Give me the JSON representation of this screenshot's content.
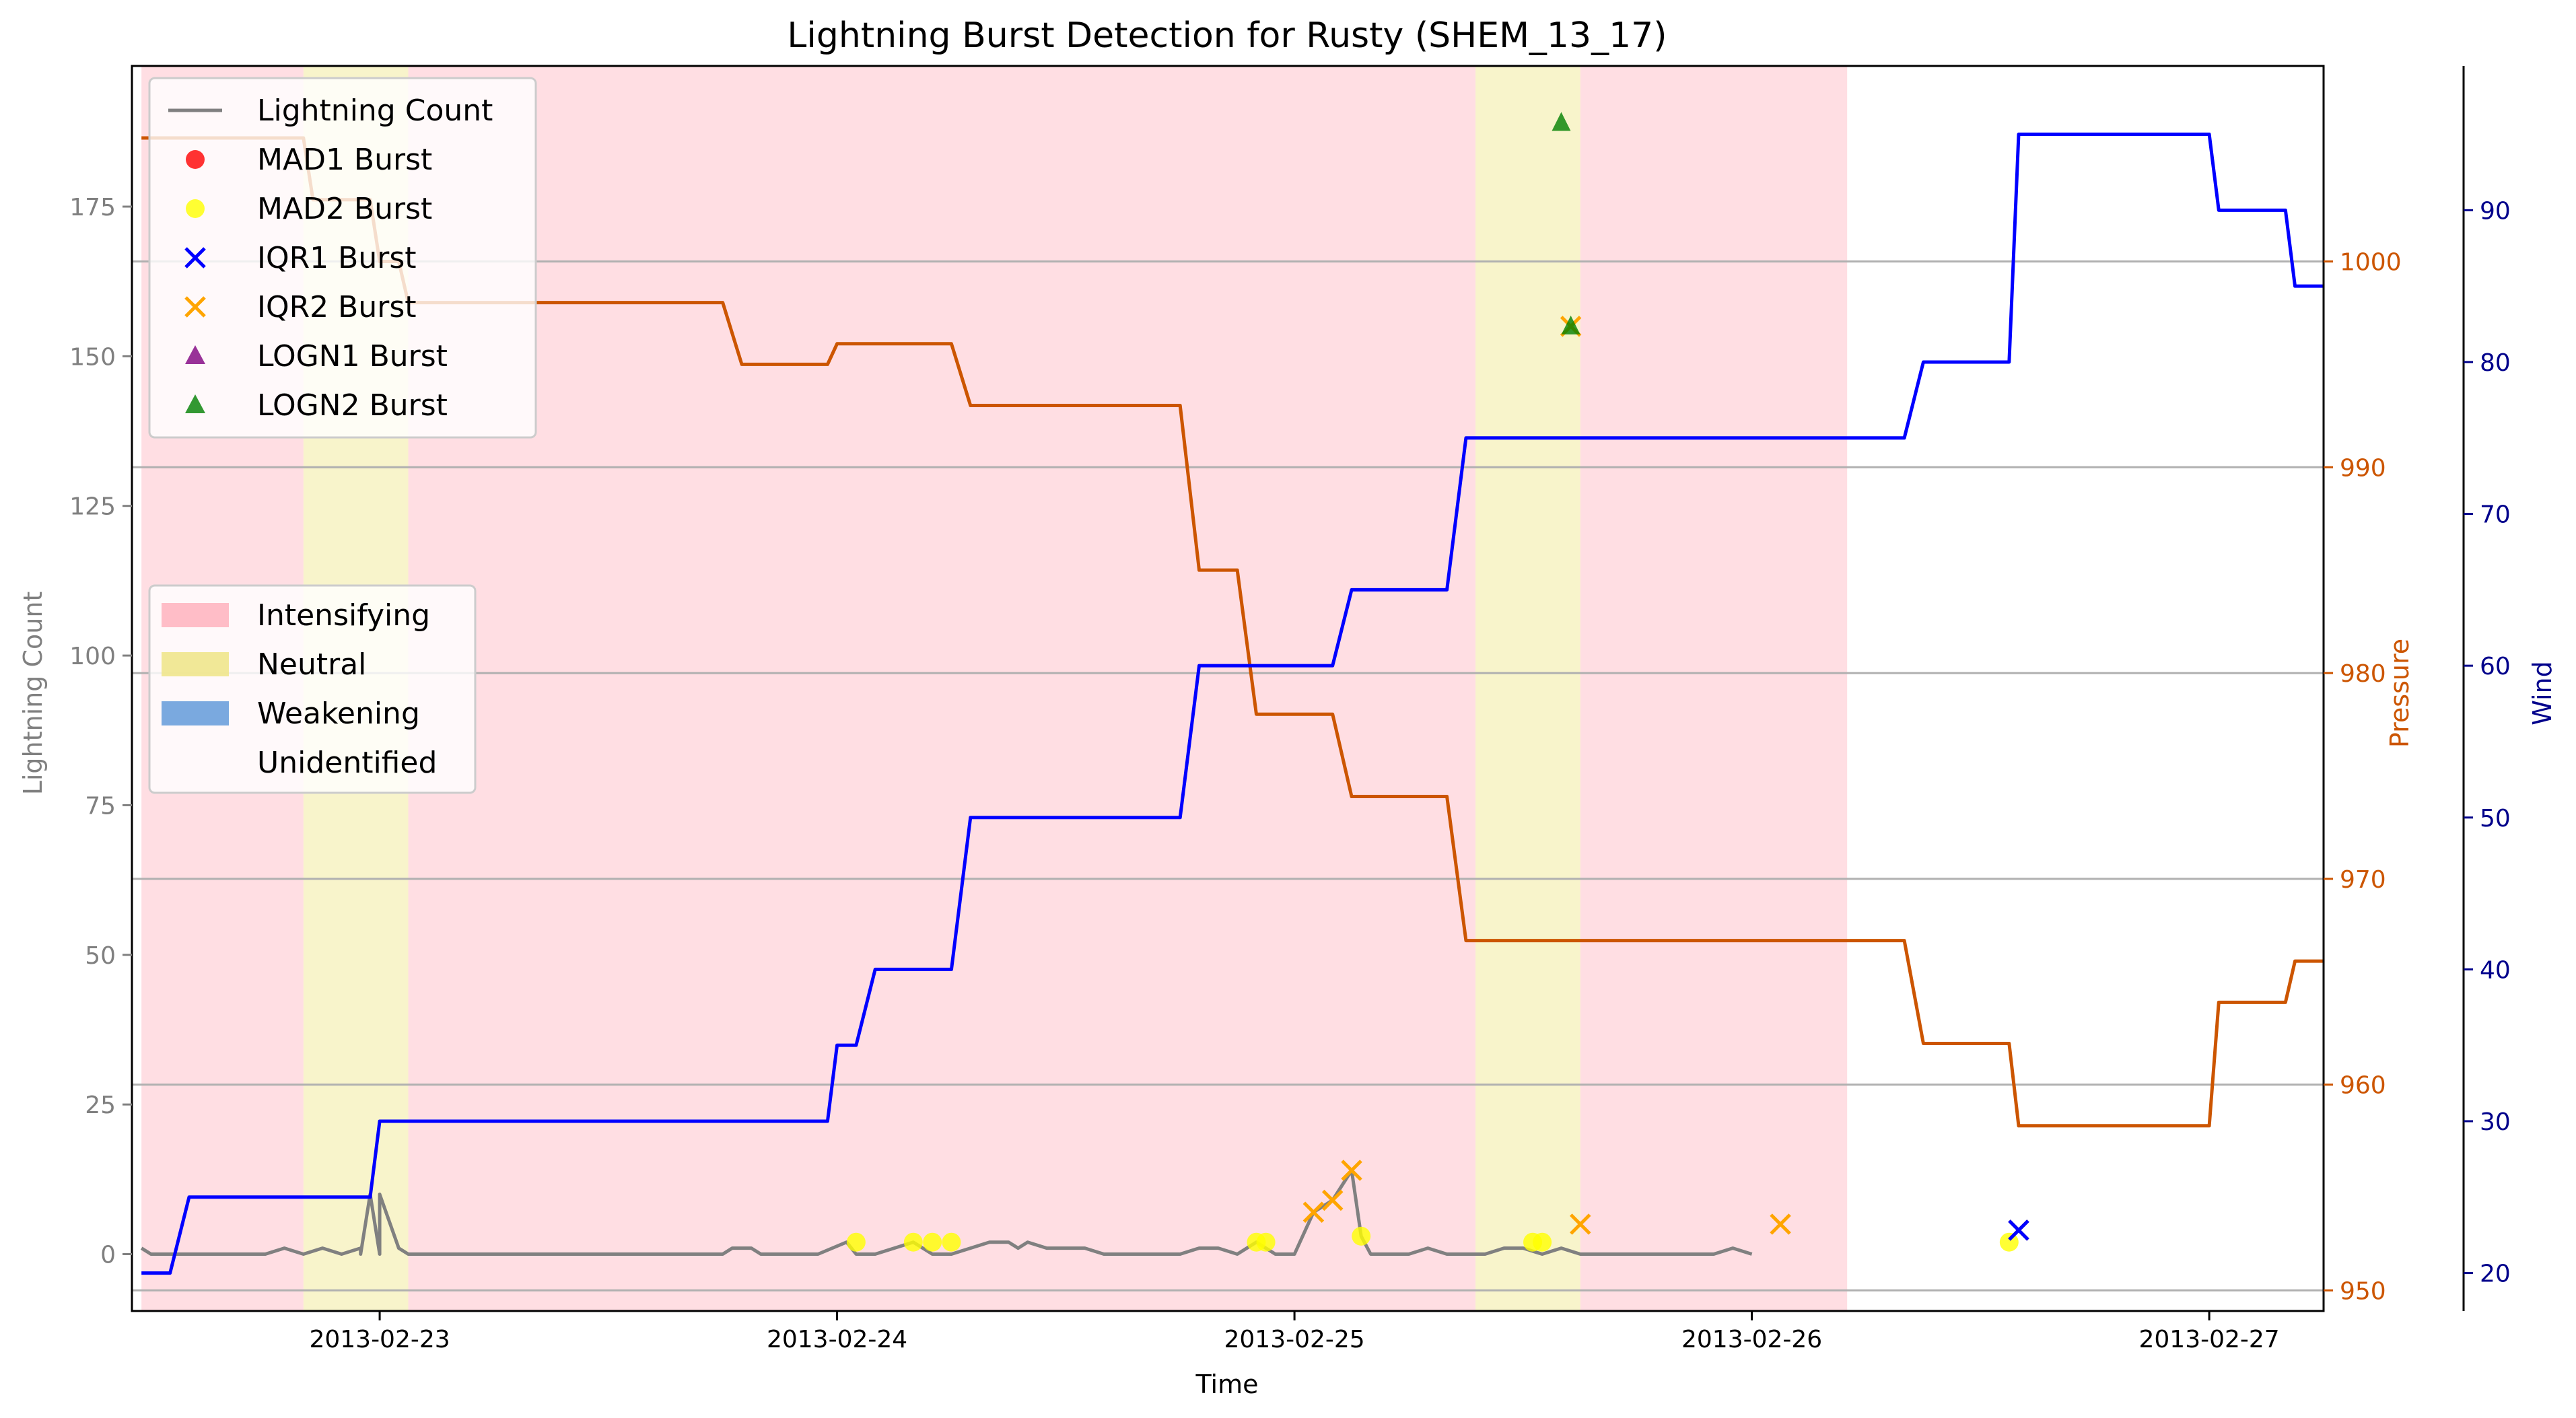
{
  "chart_data": {
    "type": "line",
    "title": "Lightning Burst Detection for Rusty (SHEM_13_17)",
    "xlabel": "Time",
    "ylabel_left": "Lightning Count",
    "ylabel_pressure": "Pressure",
    "ylabel_wind": "Wind",
    "grid": "horizontal",
    "x_range": [
      "2013-02-22T11:00",
      "2013-02-27T06:00"
    ],
    "x_ticks": [
      "2013-02-23",
      "2013-02-24",
      "2013-02-25",
      "2013-02-26",
      "2013-02-27"
    ],
    "y_left_range": [
      -9.5,
      198.5
    ],
    "y_left_ticks": [
      0,
      25,
      50,
      75,
      100,
      125,
      150,
      175
    ],
    "y_pressure_range": [
      949.0,
      1009.5
    ],
    "y_pressure_ticks": [
      950,
      960,
      970,
      980,
      990,
      1000
    ],
    "y_wind_range": [
      17.5,
      99.5
    ],
    "y_wind_ticks": [
      20,
      30,
      40,
      50,
      60,
      70,
      80,
      90
    ],
    "colors": {
      "lightning": "#808080",
      "pressure": "#cc5500",
      "wind": "#0000ff",
      "wind_axis": "#00008b",
      "intensifying": "#ffb6c1",
      "neutral": "#f0e68c",
      "weakening": "#6ca0dc",
      "mad1": "#ff0000",
      "mad2": "#ffff00",
      "iqr1": "#0000ff",
      "iqr2": "#ffa500",
      "logn1": "#800080",
      "logn2": "#008000"
    },
    "phases": [
      {
        "label": "Intensifying",
        "start": "2013-02-22T11:30",
        "end": "2013-02-22T20:00"
      },
      {
        "label": "Neutral",
        "start": "2013-02-22T20:00",
        "end": "2013-02-23T01:30"
      },
      {
        "label": "Intensifying",
        "start": "2013-02-23T01:30",
        "end": "2013-02-25T09:30"
      },
      {
        "label": "Neutral",
        "start": "2013-02-25T09:30",
        "end": "2013-02-25T15:00"
      },
      {
        "label": "Intensifying",
        "start": "2013-02-25T15:00",
        "end": "2013-02-26T05:00"
      }
    ],
    "series": [
      {
        "name": "Lightning Count",
        "axis": "left",
        "points": [
          [
            "2013-02-22T11:30",
            1
          ],
          [
            "2013-02-22T12:00",
            0
          ],
          [
            "2013-02-22T20:00",
            0
          ],
          [
            "2013-02-22T22:00",
            0
          ],
          [
            "2013-02-22T23:00",
            1
          ],
          [
            "2013-02-22T24:00",
            0
          ],
          [
            "2013-02-22T18:00",
            0
          ],
          [
            "2013-02-22T19:00",
            1
          ],
          [
            "2013-02-22T20:00",
            0
          ],
          [
            "2013-02-22T21:00",
            1
          ],
          [
            "2013-02-22T22:00",
            0
          ],
          [
            "2013-02-22T23:00",
            0
          ],
          [
            "2013-02-22T23:30",
            10
          ],
          [
            "2013-02-23T00:00",
            10
          ],
          [
            "2013-02-23T01:00",
            1
          ],
          [
            "2013-02-23T01:30",
            0
          ],
          [
            "2013-02-23T18:00",
            0
          ],
          [
            "2013-02-23T18:30",
            1
          ],
          [
            "2013-02-23T19:30",
            1
          ],
          [
            "2013-02-23T20:00",
            0
          ],
          [
            "2013-02-23T23:00",
            0
          ],
          [
            "2013-02-24T00:30",
            2
          ],
          [
            "2013-02-24T01:00",
            0
          ],
          [
            "2013-02-24T02:00",
            0
          ],
          [
            "2013-02-24T03:00",
            1
          ],
          [
            "2013-02-24T04:00",
            2
          ],
          [
            "2013-02-24T05:00",
            0
          ],
          [
            "2013-02-24T06:00",
            0
          ],
          [
            "2013-02-24T07:00",
            1
          ],
          [
            "2013-02-24T08:00",
            2
          ],
          [
            "2013-02-24T09:00",
            2
          ],
          [
            "2013-02-24T09:30",
            1
          ],
          [
            "2013-02-24T10:00",
            2
          ],
          [
            "2013-02-24T11:00",
            1
          ],
          [
            "2013-02-24T13:00",
            1
          ],
          [
            "2013-02-24T14:00",
            0
          ],
          [
            "2013-02-24T16:00",
            0
          ],
          [
            "2013-02-24T18:00",
            0
          ],
          [
            "2013-02-24T19:00",
            1
          ],
          [
            "2013-02-24T20:00",
            1
          ],
          [
            "2013-02-24T21:00",
            0
          ],
          [
            "2013-02-24T22:00",
            2
          ],
          [
            "2013-02-24T23:00",
            0
          ],
          [
            "2013-02-25T00:00",
            0
          ],
          [
            "2013-02-25T01:00",
            7
          ],
          [
            "2013-02-25T02:00",
            9
          ],
          [
            "2013-02-25T03:00",
            14
          ],
          [
            "2013-02-25T03:30",
            3
          ],
          [
            "2013-02-25T04:00",
            0
          ],
          [
            "2013-02-25T06:00",
            0
          ],
          [
            "2013-02-25T07:00",
            1
          ],
          [
            "2013-02-25T08:00",
            0
          ],
          [
            "2013-02-25T10:00",
            0
          ],
          [
            "2013-02-25T11:00",
            1
          ],
          [
            "2013-02-25T12:00",
            1
          ],
          [
            "2013-02-25T13:00",
            0
          ],
          [
            "2013-02-25T14:00",
            1
          ],
          [
            "2013-02-25T15:00",
            0
          ],
          [
            "2013-02-25T22:00",
            0
          ],
          [
            "2013-02-25T23:00",
            1
          ],
          [
            "2013-02-25T24:00",
            0
          ]
        ]
      },
      {
        "name": "Pressure",
        "axis": "pressure",
        "points": []
      },
      {
        "name": "Wind",
        "axis": "wind",
        "points": []
      }
    ],
    "legend_markers": {
      "entries": [
        "Lightning Count",
        "MAD1 Burst",
        "MAD2 Burst",
        "IQR1 Burst",
        "IQR2 Burst",
        "LOGN1 Burst",
        "LOGN2 Burst"
      ],
      "placement": "upper-left"
    },
    "legend_phases": {
      "entries": [
        "Intensifying",
        "Neutral",
        "Weakening",
        "Unidentified"
      ],
      "placement": "center-left"
    },
    "bursts": {
      "mad2": [
        [
          "2013-02-24T01:00",
          2
        ],
        [
          "2013-02-24T04:00",
          2
        ],
        [
          "2013-02-24T05:00",
          2
        ],
        [
          "2013-02-24T06:00",
          2
        ],
        [
          "2013-02-24T22:00",
          2
        ],
        [
          "2013-02-24T22:30",
          2
        ],
        [
          "2013-02-25T03:30",
          3
        ],
        [
          "2013-02-25T12:30",
          2
        ],
        [
          "2013-02-25T13:00",
          2
        ],
        [
          "2013-02-26T13:30",
          2
        ]
      ],
      "iqr1": [
        [
          "2013-02-26T14:00",
          4
        ]
      ],
      "iqr2": [
        [
          "2013-02-25T01:00",
          7
        ],
        [
          "2013-02-25T02:00",
          9
        ],
        [
          "2013-02-25T03:00",
          14
        ],
        [
          "2013-02-25T14:30",
          155
        ],
        [
          "2013-02-25T15:00",
          5
        ],
        [
          "2013-02-26T01:30",
          5
        ],
        [
          "2013-02-26T14:00",
          4
        ]
      ],
      "logn2": [
        [
          "2013-02-25T14:00",
          189
        ],
        [
          "2013-02-25T14:30",
          155
        ]
      ]
    }
  }
}
